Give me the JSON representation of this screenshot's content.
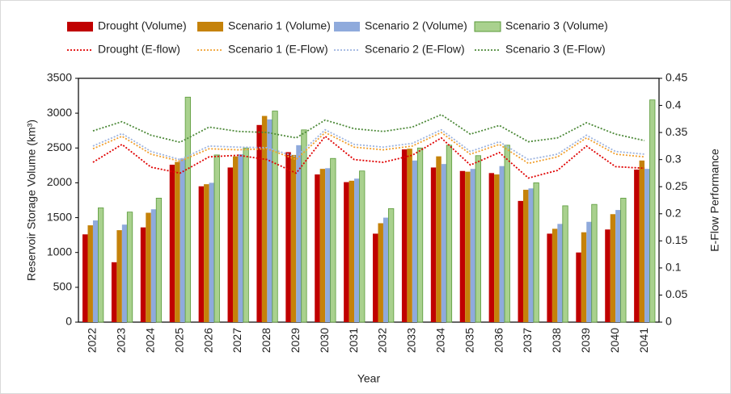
{
  "chart_data": {
    "type": "bar",
    "y_label": "Reservoir Storage Volume (km³)",
    "y2_label": "E-Flow Performance",
    "x_label": "Year",
    "categories": [
      "2022",
      "2023",
      "2024",
      "2025",
      "2026",
      "2027",
      "2028",
      "2029",
      "2030",
      "2031",
      "2032",
      "2033",
      "2034",
      "2035",
      "2036",
      "2037",
      "2038",
      "2039",
      "2040",
      "2041"
    ],
    "ylim": [
      0,
      3500
    ],
    "yticks": [
      0,
      500,
      1000,
      1500,
      2000,
      2500,
      3000,
      3500
    ],
    "y2lim": [
      0,
      0.45
    ],
    "y2ticks": [
      0,
      0.05,
      0.1,
      0.15,
      0.2,
      0.25,
      0.3,
      0.35,
      0.4,
      0.45
    ],
    "series": [
      {
        "name": "Drought (Volume)",
        "type": "bar",
        "color": "#c00000",
        "values": [
          1260,
          860,
          1360,
          2260,
          1950,
          2220,
          2830,
          2440,
          2120,
          2010,
          1270,
          2480,
          2220,
          2170,
          2140,
          1740,
          1270,
          1000,
          1330,
          2190
        ]
      },
      {
        "name": "Scenario 1 (Volume)",
        "type": "bar",
        "color": "#c5820a",
        "values": [
          1390,
          1320,
          1570,
          2300,
          1980,
          2380,
          2960,
          2400,
          2200,
          2030,
          1420,
          2490,
          2380,
          2160,
          2120,
          1900,
          1340,
          1290,
          1550,
          2320
        ]
      },
      {
        "name": "Scenario 2 (Volume)",
        "type": "bar",
        "color": "#8faadc",
        "values": [
          1460,
          1400,
          1620,
          2350,
          2000,
          2410,
          2910,
          2540,
          2210,
          2060,
          1500,
          2320,
          2270,
          2200,
          2240,
          1920,
          1410,
          1440,
          1610,
          2200
        ]
      },
      {
        "name": "Scenario 3 (Volume)",
        "type": "bar",
        "color": "#a9d18e",
        "values": [
          1640,
          1580,
          1780,
          3230,
          2400,
          2500,
          3030,
          2760,
          2350,
          2170,
          1630,
          2500,
          2540,
          2390,
          2540,
          2000,
          1670,
          1690,
          1780,
          3190
        ]
      },
      {
        "name": "Drought (E-flow)",
        "type": "line",
        "axis": "y2",
        "color": "#e00000",
        "values": [
          0.295,
          0.328,
          0.286,
          0.275,
          0.305,
          0.308,
          0.3,
          0.275,
          0.343,
          0.3,
          0.295,
          0.308,
          0.34,
          0.29,
          0.313,
          0.266,
          0.28,
          0.325,
          0.287,
          0.284
        ]
      },
      {
        "name": "Scenario 1 (E-Flow)",
        "type": "line",
        "axis": "y2",
        "color": "#f0a030",
        "values": [
          0.32,
          0.343,
          0.31,
          0.297,
          0.32,
          0.318,
          0.32,
          0.3,
          0.35,
          0.323,
          0.318,
          0.325,
          0.35,
          0.31,
          0.328,
          0.293,
          0.305,
          0.34,
          0.31,
          0.305
        ]
      },
      {
        "name": "Scenario 2 (E-Flow)",
        "type": "line",
        "axis": "y2",
        "color": "#9db4e0",
        "values": [
          0.325,
          0.348,
          0.315,
          0.3,
          0.325,
          0.323,
          0.322,
          0.305,
          0.355,
          0.328,
          0.323,
          0.33,
          0.355,
          0.315,
          0.333,
          0.3,
          0.31,
          0.345,
          0.315,
          0.31
        ]
      },
      {
        "name": "Scenario 3 (E-Flow)",
        "type": "line",
        "axis": "y2",
        "color": "#4e8a3a",
        "values": [
          0.353,
          0.37,
          0.345,
          0.332,
          0.36,
          0.352,
          0.35,
          0.34,
          0.373,
          0.357,
          0.352,
          0.36,
          0.383,
          0.347,
          0.363,
          0.333,
          0.34,
          0.368,
          0.347,
          0.335
        ]
      }
    ]
  }
}
